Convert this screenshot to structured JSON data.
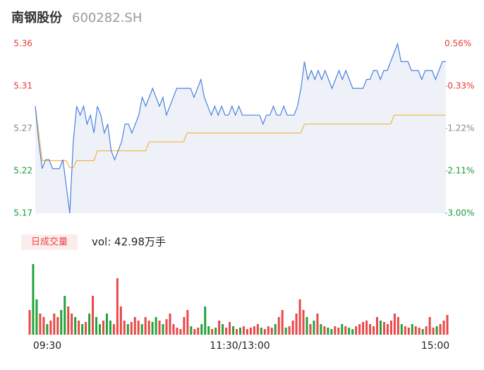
{
  "chart_data": {
    "type": "line",
    "title": "南钢股份",
    "subtitle": "600282.SH",
    "ylim": [
      5.17,
      5.36
    ],
    "yticks": [
      5.36,
      {
        "value": 5.3125,
        "label": "5.31"
      },
      {
        "value": 5.265,
        "label": "5.27"
      },
      {
        "value": 5.2175,
        "label": "5.22"
      },
      5.17
    ],
    "y2lim": [
      -3.0,
      0.56
    ],
    "y2ticks": [
      {
        "value": 0.56,
        "label": "0.56%"
      },
      {
        "value": -0.33,
        "label": "-0.33%"
      },
      {
        "value": -1.22,
        "label": "-1.22%"
      },
      {
        "value": -2.11,
        "label": "-2.11%"
      },
      {
        "value": -3.0,
        "label": "-3.00%"
      }
    ],
    "tick_colors": [
      "#e53935",
      "#e53935",
      "#888888",
      "#1a9a3a",
      "#1a9a3a"
    ],
    "time_labels": [
      "09:30",
      "11:30/13:00",
      "15:00"
    ],
    "price": {
      "color": "#4a80e0",
      "area_color": "#eef2f8",
      "values": [
        5.29,
        5.25,
        5.22,
        5.23,
        5.23,
        5.22,
        5.22,
        5.22,
        5.23,
        5.2,
        5.17,
        5.25,
        5.29,
        5.28,
        5.29,
        5.27,
        5.28,
        5.26,
        5.29,
        5.28,
        5.26,
        5.27,
        5.24,
        5.23,
        5.24,
        5.25,
        5.27,
        5.27,
        5.26,
        5.27,
        5.28,
        5.3,
        5.29,
        5.3,
        5.31,
        5.3,
        5.29,
        5.3,
        5.28,
        5.29,
        5.3,
        5.31,
        5.31,
        5.31,
        5.31,
        5.31,
        5.3,
        5.31,
        5.32,
        5.3,
        5.29,
        5.28,
        5.29,
        5.28,
        5.29,
        5.28,
        5.28,
        5.29,
        5.28,
        5.29,
        5.28,
        5.28,
        5.28,
        5.28,
        5.28,
        5.28,
        5.27,
        5.28,
        5.28,
        5.29,
        5.28,
        5.28,
        5.29,
        5.28,
        5.28,
        5.28,
        5.29,
        5.31,
        5.34,
        5.32,
        5.33,
        5.32,
        5.33,
        5.32,
        5.33,
        5.32,
        5.31,
        5.32,
        5.33,
        5.32,
        5.33,
        5.32,
        5.31,
        5.31,
        5.31,
        5.31,
        5.32,
        5.32,
        5.33,
        5.33,
        5.32,
        5.33,
        5.33,
        5.34,
        5.35,
        5.36,
        5.34,
        5.34,
        5.34,
        5.33,
        5.33,
        5.33,
        5.32,
        5.33,
        5.33,
        5.33,
        5.32,
        5.33,
        5.34,
        5.34
      ]
    },
    "average": {
      "color": "#f2b33d",
      "values": [
        5.29,
        5.26,
        5.229,
        5.229,
        5.229,
        5.229,
        5.229,
        5.229,
        5.229,
        5.229,
        5.221,
        5.221,
        5.229,
        5.229,
        5.229,
        5.229,
        5.229,
        5.229,
        5.24,
        5.24,
        5.24,
        5.24,
        5.24,
        5.24,
        5.24,
        5.24,
        5.24,
        5.24,
        5.24,
        5.24,
        5.24,
        5.24,
        5.24,
        5.25,
        5.25,
        5.25,
        5.25,
        5.25,
        5.25,
        5.25,
        5.25,
        5.25,
        5.25,
        5.25,
        5.26,
        5.26,
        5.26,
        5.26,
        5.26,
        5.26,
        5.26,
        5.26,
        5.26,
        5.26,
        5.26,
        5.26,
        5.26,
        5.26,
        5.26,
        5.26,
        5.26,
        5.26,
        5.26,
        5.26,
        5.26,
        5.26,
        5.26,
        5.26,
        5.26,
        5.26,
        5.26,
        5.26,
        5.26,
        5.26,
        5.26,
        5.26,
        5.26,
        5.26,
        5.27,
        5.27,
        5.27,
        5.27,
        5.27,
        5.27,
        5.27,
        5.27,
        5.27,
        5.27,
        5.27,
        5.27,
        5.27,
        5.27,
        5.27,
        5.27,
        5.27,
        5.27,
        5.27,
        5.27,
        5.27,
        5.27,
        5.27,
        5.27,
        5.27,
        5.27,
        5.28,
        5.28,
        5.28,
        5.28,
        5.28,
        5.28,
        5.28,
        5.28,
        5.28,
        5.28,
        5.28,
        5.28,
        5.28,
        5.28,
        5.28,
        5.28
      ]
    },
    "volume": {
      "label": "日成交量",
      "summary": "vol: 42.98万手",
      "up_color": "#e84848",
      "down_color": "#22a33a",
      "vlim": [
        0,
        106
      ],
      "values": [
        35,
        100,
        50,
        30,
        25,
        15,
        20,
        30,
        25,
        35,
        55,
        40,
        30,
        25,
        20,
        15,
        18,
        30,
        55,
        25,
        15,
        20,
        30,
        20,
        15,
        80,
        40,
        20,
        15,
        18,
        25,
        20,
        15,
        25,
        20,
        18,
        25,
        20,
        15,
        22,
        30,
        15,
        10,
        8,
        25,
        35,
        12,
        8,
        10,
        15,
        40,
        12,
        8,
        10,
        20,
        15,
        10,
        18,
        12,
        8,
        10,
        12,
        8,
        10,
        12,
        15,
        10,
        8,
        12,
        10,
        15,
        25,
        35,
        10,
        12,
        20,
        30,
        50,
        35,
        25,
        15,
        20,
        30,
        15,
        12,
        10,
        8,
        12,
        10,
        15,
        12,
        10,
        8,
        12,
        15,
        18,
        20,
        15,
        12,
        25,
        20,
        18,
        15,
        20,
        30,
        25,
        15,
        12,
        10,
        15,
        12,
        10,
        8,
        12,
        25,
        10,
        12,
        15,
        20,
        28
      ]
    }
  }
}
